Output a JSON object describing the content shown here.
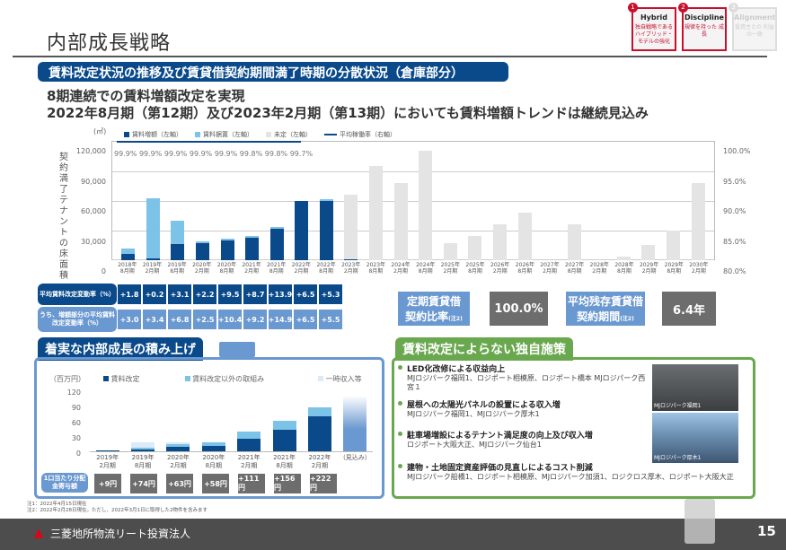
{
  "header": {
    "title": "内部成長戦略",
    "page_number": "15",
    "badges": [
      {
        "num": "1",
        "title": "Hybrid",
        "desc": "独自戦略である ハイブリッド・ モデルの強化",
        "active": true
      },
      {
        "num": "2",
        "title": "Discipline",
        "desc": "規律を持った 成長",
        "active": true
      },
      {
        "num": "3",
        "title": "Alignment",
        "desc": "投資主との 利益の一致",
        "active": false
      }
    ]
  },
  "section1": {
    "title": "賃料改定状況の推移及び賃貸借契約期間満了時期の分散状況（倉庫部分）",
    "headline1": "8期連続での賃料増額改定を実現",
    "headline2": "2022年8月期（第12期）及び2023年2月期（第13期）においても賃料増額トレンドは継続見込み"
  },
  "chart_data": [
    {
      "type": "bar",
      "title": "契約満了テナントの床面積",
      "unit": "(㎡)",
      "ylabel": "契約満了テナントの床面積",
      "y2label": "平均稼働率（右軸）",
      "ylim": [
        0,
        120000
      ],
      "y2lim": [
        80,
        100
      ],
      "yticks": [
        "120,000",
        "90,000",
        "60,000",
        "30,000",
        "0"
      ],
      "y2ticks": [
        "100.0%",
        "95.0%",
        "90.0%",
        "85.0%",
        "80.0%"
      ],
      "legend": [
        "賃料増額（左軸）",
        "賃料据置（左軸）",
        "未定（左軸）",
        "平均稼働率（右軸）"
      ],
      "categories": [
        "2018年8月期",
        "2019年2月期",
        "2019年8月期",
        "2020年2月期",
        "2020年8月期",
        "2021年2月期",
        "2021年8月期",
        "2022年2月期",
        "2022年8月期",
        "2023年2月期",
        "2023年8月期",
        "2024年2月期",
        "2024年8月期",
        "2025年2月期",
        "2025年8月期",
        "2026年2月期",
        "2026年8月期",
        "2027年2月期",
        "2027年8月期",
        "2028年2月期",
        "2028年8月期",
        "2029年2月期",
        "2029年8月期",
        "2030年2月期"
      ],
      "series": [
        {
          "name": "賃料増額（左軸）",
          "color": "#0a4a8a",
          "values": [
            6500,
            2000,
            16000,
            17000,
            20000,
            23000,
            32000,
            59500,
            60000,
            1000,
            0,
            0,
            0,
            0,
            0,
            0,
            0,
            0,
            0,
            0,
            0,
            0,
            0,
            0
          ]
        },
        {
          "name": "賃料据置（左軸）",
          "color": "#7dc3e8",
          "values": [
            5000,
            60500,
            24000,
            2000,
            1500,
            1000,
            1000,
            0,
            1000,
            0,
            0,
            0,
            0,
            0,
            0,
            0,
            0,
            0,
            0,
            0,
            0,
            0,
            0,
            0
          ]
        },
        {
          "name": "未定（左軸）",
          "color": "#e4e4e4",
          "values": [
            0,
            0,
            0,
            0,
            0,
            0,
            0,
            0,
            0,
            65000,
            95000,
            78000,
            110000,
            17000,
            24000,
            36000,
            48000,
            0,
            36000,
            0,
            4000,
            15000,
            30000,
            78000
          ]
        },
        {
          "name": "平均稼働率（右軸）",
          "color": "#0a4a8a",
          "values": [
            99.9,
            99.9,
            99.9,
            99.9,
            99.9,
            99.8,
            99.8,
            99.7
          ]
        }
      ]
    },
    {
      "type": "bar",
      "title": "着実な内部成長の積み上げ",
      "unit": "（百万円）",
      "ylim": [
        0,
        120
      ],
      "yticks": [
        "120",
        "90",
        "60",
        "30",
        "0"
      ],
      "legend": [
        "賃料改定",
        "賃料改定以外の取組み",
        "一時収入等"
      ],
      "categories": [
        "2019年2月期",
        "2019年8月期",
        "2020年2月期",
        "2020年8月期",
        "2021年2月期",
        "2021年8月期",
        "2022年2月期",
        "（見込み）"
      ],
      "series": [
        {
          "name": "賃料改定",
          "color": "#0a4a8a",
          "values": [
            2,
            3,
            9,
            11,
            25,
            42,
            68,
            null
          ]
        },
        {
          "name": "賃料改定以外の取組み",
          "color": "#7dc3e8",
          "values": [
            0,
            4,
            6,
            7,
            13,
            18,
            18,
            null
          ]
        },
        {
          "name": "一時収入等",
          "color": "#dcebf7",
          "values": [
            0,
            10,
            2,
            0,
            0,
            0,
            0,
            null
          ]
        }
      ],
      "forecast_bar": {
        "label": "（見込み）",
        "approx_total": 110
      }
    }
  ],
  "rate_rows": [
    {
      "label": "平均賃料改定変動率（%）",
      "values": [
        "+1.8",
        "+0.2",
        "+3.1",
        "+2.2",
        "+9.5",
        "+8.7",
        "+13.9",
        "+6.5",
        "+5.3"
      ]
    },
    {
      "label": "うち、増額部分の平均賃料改定変動率（%）",
      "values": [
        "+3.0",
        "+3.4",
        "+6.8",
        "+2.5",
        "+10.4",
        "+9.2",
        "+14.9",
        "+6.5",
        "+5.5"
      ]
    }
  ],
  "kpis": [
    {
      "label1": "定期賃貸借",
      "label2": "契約比率",
      "note": "(注2)",
      "value": "100.0%"
    },
    {
      "label1": "平均残存賃貸借",
      "label2": "契約期間",
      "note": "(注2)",
      "value": "6.4年"
    }
  ],
  "dpu": {
    "label": "1口当たり分配金寄与額",
    "values": [
      "+9円",
      "+74円",
      "+63円",
      "+58円",
      "+111円",
      "+156円",
      "+222円"
    ]
  },
  "section3": {
    "title": "賃料改定によらない独自施策",
    "items": [
      {
        "head": "LED化改修による収益向上",
        "body": "MJロジパーク福岡1、ロジポート相模原、ロジポート橋本 MJロジパーク西宮１"
      },
      {
        "head": "屋根への太陽光パネルの設置による収入増",
        "body": "MJロジパーク福岡1、MJロジパーク厚木1"
      },
      {
        "head": "駐車場増設によるテナント満足度の向上及び収入増",
        "body": "ロジポート大阪大正、MJロジパーク仙台1"
      },
      {
        "head": "建物・土地固定資産評価の見直しによるコスト削減",
        "body": "MJロジパーク船橋1、ロジポート相模原、MJロジパーク加須1、ロジクロス厚木、ロジポート大阪大正"
      }
    ],
    "photos": [
      {
        "caption": "MJロジパーク福岡1"
      },
      {
        "caption": "MJロジパーク厚木1"
      }
    ]
  },
  "notes": [
    "注1：2022年4月15日現在",
    "注2：2022年2月28日現在。ただし、2022年3月1日に取得した2物件を含みます"
  ],
  "footer": {
    "company": "三菱地所物流リート投資法人"
  }
}
